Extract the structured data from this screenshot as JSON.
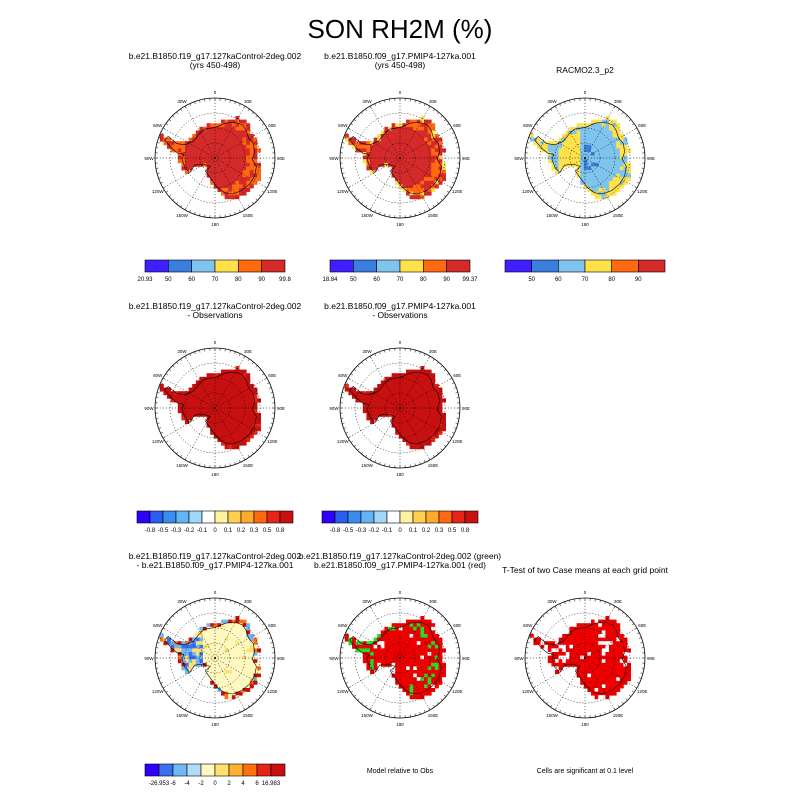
{
  "title": "SON RH2M (%)",
  "colors": {
    "ramp_rh": [
      "#3f1fff",
      "#3a7fe0",
      "#7fc4ee",
      "#ffe14a",
      "#ff6a10",
      "#d42a2a"
    ],
    "ramp_diff": [
      "#3000ff",
      "#2a5df0",
      "#3a8cf0",
      "#62b4f4",
      "#9fd8f8",
      "#ffffff",
      "#fff3a0",
      "#ffd050",
      "#ffab2a",
      "#ff6a10",
      "#e82418",
      "#c81010"
    ],
    "ramp_diff_bottom": [
      "#3000ff",
      "#3a70f0",
      "#70b8f4",
      "#b0dcf8",
      "#fff9c0",
      "#ffe070",
      "#ffb030",
      "#ff7010",
      "#e82418",
      "#c81010"
    ],
    "green": "#22dd22",
    "sig_red": "#ee0000"
  },
  "panels": [
    {
      "title_lines": [
        "b.e21.B1850.f19_g17.127kaControl-2deg.002",
        "(yrs 450-498)"
      ],
      "colorbar_labels": [
        "20.93",
        "50",
        "60",
        "70",
        "80",
        "90",
        "99.8"
      ],
      "color_range": [
        20.93,
        99.8
      ]
    },
    {
      "title_lines": [
        "b.e21.B1850.f09_g17.PMIP4-127ka.001",
        "(yrs 450-498)"
      ],
      "colorbar_labels": [
        "18.84",
        "50",
        "60",
        "70",
        "80",
        "90",
        "99.37"
      ],
      "color_range": [
        18.84,
        99.37
      ]
    },
    {
      "title_lines": [
        "RACMO2.3_p2"
      ],
      "colorbar_labels": [
        "50",
        "60",
        "70",
        "80",
        "90"
      ],
      "color_range": [
        50,
        90
      ]
    },
    {
      "title_lines": [
        "b.e21.B1850.f19_g17.127kaControl-2deg.002",
        "- Observations"
      ],
      "colorbar_labels": [
        "-0.8",
        "-0.5",
        "-0.3",
        "-0.2",
        "-0.1",
        "0",
        "0.1",
        "0.2",
        "0.3",
        "0.5",
        "0.8"
      ]
    },
    {
      "title_lines": [
        "b.e21.B1850.f09_g17.PMIP4-127ka.001",
        "- Observations"
      ],
      "colorbar_labels": [
        "-0.8",
        "-0.5",
        "-0.3",
        "-0.2",
        "-0.1",
        "0",
        "0.1",
        "0.2",
        "0.3",
        "0.5",
        "0.8"
      ]
    },
    {
      "title_lines": [
        "b.e21.B1850.f19_g17.127kaControl-2deg.002",
        "- b.e21.B1850.f09_g17.PMIP4-127ka.001"
      ],
      "colorbar_labels": [
        "-26.953",
        "-6",
        "-4",
        "-2",
        "0",
        "2",
        "4",
        "6",
        "16.983"
      ],
      "color_range": [
        -26.953,
        16.983
      ]
    },
    {
      "title_lines": [
        "b.e21.B1850.f19_g17.127kaControl-2deg.002 (green)",
        "b.e21.B1850.f09_g17.PMIP4-127ka.001 (red)"
      ],
      "footer": "Model relative to Obs"
    },
    {
      "title_lines": [
        "T-Test of two Case means at each grid point"
      ],
      "footer": "Cells are significant at 0.1 level"
    }
  ],
  "map": {
    "lon_labels": [
      "0",
      "30E",
      "60E",
      "90E",
      "120E",
      "150E",
      "180",
      "150W",
      "120W",
      "90W",
      "60W",
      "30W"
    ]
  },
  "chart_data": [
    {
      "type": "heatmap",
      "title": "SON RH2M (%)",
      "panels": [
        "b.e21.B1850.f19_g17.127kaControl-2deg.002 (yrs 450-498)",
        "b.e21.B1850.f09_g17.PMIP4-127ka.001 (yrs 450-498)",
        "RACMO2.3_p2",
        "b.e21.B1850.f19_g17.127kaControl-2deg.002 - Observations",
        "b.e21.B1850.f09_g17.PMIP4-127ka.001 - Observations",
        "b.e21.B1850.f19_g17.127kaControl-2deg.002 - b.e21.B1850.f09_g17.PMIP4-127ka.001",
        "b.e21.B1850.f19_g17.127kaControl-2deg.002 (green) / b.e21.B1850.f09_g17.PMIP4-127ka.001 (red)",
        "T-Test of two Case means at each grid point"
      ],
      "projection": "south polar stereographic",
      "grid": true,
      "colorbar_position": "below each panel"
    }
  ]
}
